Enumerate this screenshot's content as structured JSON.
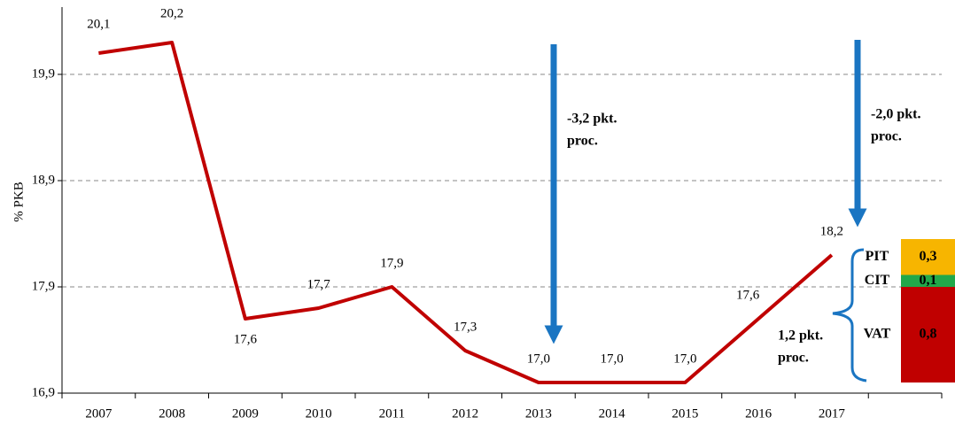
{
  "chart_data": {
    "type": "line",
    "y_label": "% PKB",
    "categories": [
      "2007",
      "2008",
      "2009",
      "2010",
      "2011",
      "2012",
      "2013",
      "2014",
      "2015",
      "2016",
      "2017"
    ],
    "series": [
      {
        "color": "#c00000",
        "values": [
          20.1,
          20.2,
          17.6,
          17.7,
          17.9,
          17.3,
          17.0,
          17.0,
          17.0,
          17.6,
          18.2
        ],
        "value_labels": [
          "20,1",
          "20,2",
          "17,6",
          "17,7",
          "17,9",
          "17,3",
          "17,0",
          "17,0",
          "17,0",
          "17,6",
          "18,2"
        ]
      }
    ],
    "ylim": [
      16.9,
      20.5
    ],
    "yticks": [
      {
        "value": 16.9,
        "label": "16,9"
      },
      {
        "value": 17.9,
        "label": "17,9"
      },
      {
        "value": 18.9,
        "label": "18,9"
      },
      {
        "value": 19.9,
        "label": "19,9"
      }
    ],
    "grid": true,
    "annotations": [
      {
        "lines": [
          "-3,2 pkt.",
          "proc."
        ],
        "color": "#1a75c2"
      },
      {
        "lines": [
          "-2,0 pkt.",
          "proc."
        ],
        "color": "#1a75c2"
      },
      {
        "lines": [
          "1,2 pkt.",
          "proc."
        ],
        "color": "#1a75c2"
      }
    ],
    "breakdown": [
      {
        "name": "PIT",
        "value": 0.3,
        "value_label": "0,3",
        "color": "#f7b500"
      },
      {
        "name": "CIT",
        "value": 0.1,
        "value_label": "0,1",
        "color": "#22a84a"
      },
      {
        "name": "VAT",
        "value": 0.8,
        "value_label": "0,8",
        "color": "#c00000"
      }
    ]
  }
}
